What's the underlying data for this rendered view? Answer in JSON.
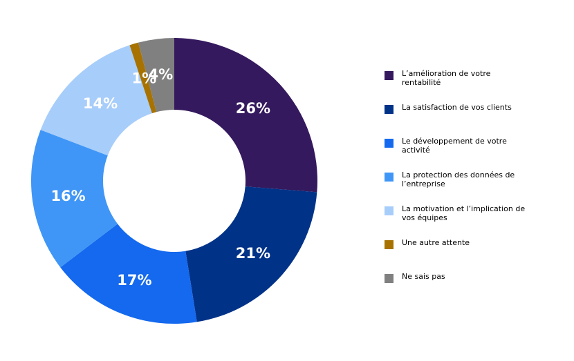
{
  "chart_data": {
    "type": "pie",
    "donut": true,
    "title": "",
    "categories": [
      "L’amélioration de votre rentabilité",
      "La satisfaction de vos clients",
      "Le développement de votre activité",
      "La protection des données de l’entreprise",
      "La motivation et l’implication de vos équipes",
      "Une autre attente",
      "Ne sais pas"
    ],
    "values": [
      26,
      21,
      17,
      16,
      14,
      1,
      4
    ],
    "labels": [
      "26%",
      "21%",
      "17%",
      "16%",
      "14%",
      "1%",
      "4%"
    ],
    "colors": [
      "#35195e",
      "#003288",
      "#1469ee",
      "#3f96f7",
      "#a7cdfa",
      "#a77200",
      "#808080"
    ],
    "legend_position": "right"
  }
}
